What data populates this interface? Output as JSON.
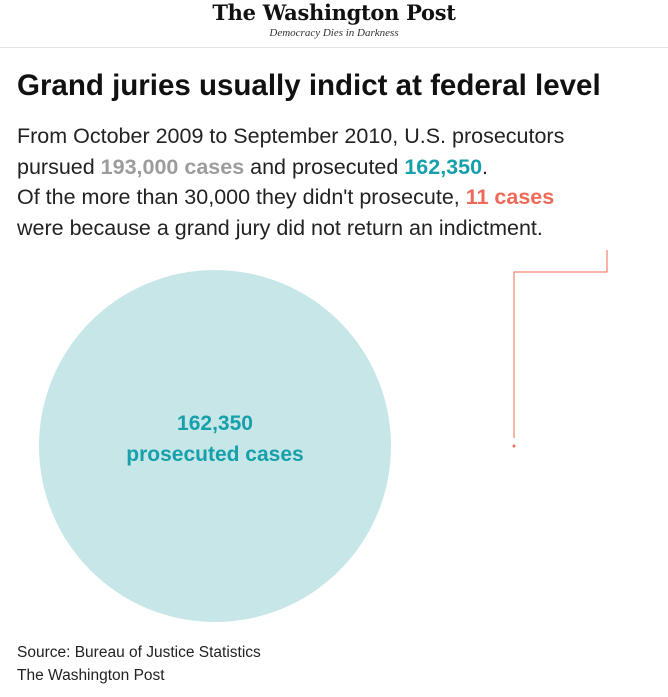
{
  "masthead": {
    "logo": "The Washington Post",
    "tagline": "Democracy Dies in Darkness"
  },
  "article": {
    "headline": "Grand juries usually indict at federal level",
    "dek": {
      "line1": "From October 2009 to September 2010, U.S. prosecutors",
      "line2_pre": "pursued ",
      "pursued_value": "193,000 cases",
      "line2_mid": " and prosecuted ",
      "prosecuted_value": "162,350",
      "line2_post": ".",
      "line3_pre": "Of the more than 30,000 they didn't prosecute, ",
      "not_indicted_value": "11 cases",
      "line4": "were because a grand jury did not return an indictment."
    },
    "source_line": "Source: Bureau of Justice Statistics",
    "credit_line": "The Washington Post"
  },
  "chart_data": {
    "type": "proportional-area",
    "items": [
      {
        "label": "prosecuted cases",
        "value": 162350,
        "value_label": "162,350",
        "color": "#c6e6e7",
        "label_color": "#16a0ab"
      },
      {
        "label": "",
        "value": 11,
        "color": "#ec6a57"
      }
    ]
  }
}
